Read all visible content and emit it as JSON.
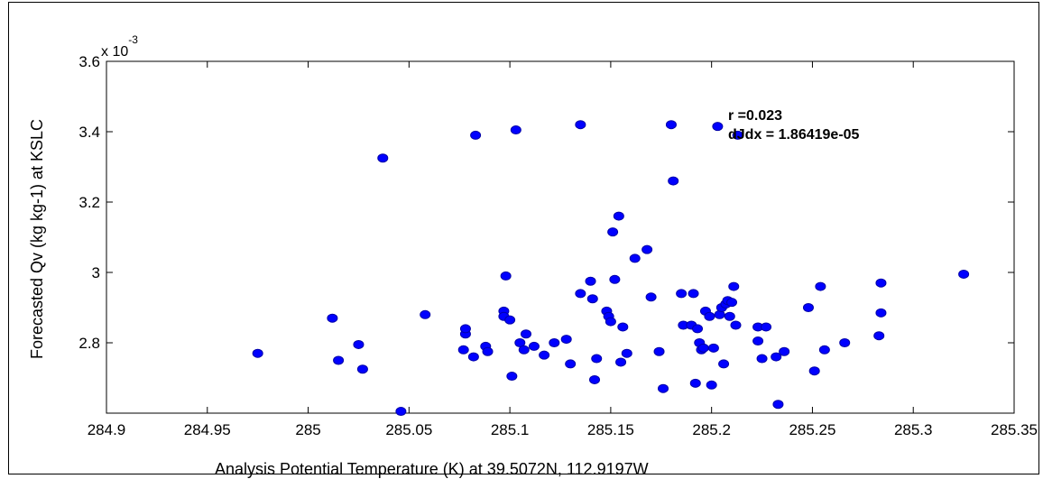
{
  "chart_data": {
    "type": "scatter",
    "xlabel": "Analysis Potential Temperature (K) at 39.5072N, 112.9197W",
    "ylabel": "Forecasted Qv (kg kg-1) at KSLC",
    "y_multiplier": "x 10",
    "y_multiplier_exp": "-3",
    "xlim": [
      284.9,
      285.35
    ],
    "ylim": [
      2.6,
      3.6
    ],
    "x_ticks": [
      "284.9",
      "284.95",
      "285",
      "285.05",
      "285.1",
      "285.15",
      "285.2",
      "285.25",
      "285.3",
      "285.35"
    ],
    "y_ticks": [
      "2.8",
      "3",
      "3.2",
      "3.4",
      "3.6"
    ],
    "annotations": [
      "r =0.023",
      "dJdx = 1.86419e-05"
    ],
    "marker_color": "#0000ff",
    "grid": false,
    "points": [
      [
        284.975,
        2.77
      ],
      [
        285.012,
        2.87
      ],
      [
        285.015,
        2.75
      ],
      [
        285.025,
        2.795
      ],
      [
        285.027,
        2.725
      ],
      [
        285.037,
        3.325
      ],
      [
        285.046,
        2.605
      ],
      [
        285.058,
        2.88
      ],
      [
        285.077,
        2.78
      ],
      [
        285.078,
        2.825
      ],
      [
        285.078,
        2.84
      ],
      [
        285.082,
        2.76
      ],
      [
        285.083,
        3.39
      ],
      [
        285.088,
        2.79
      ],
      [
        285.089,
        2.775
      ],
      [
        285.097,
        2.89
      ],
      [
        285.097,
        2.875
      ],
      [
        285.098,
        2.99
      ],
      [
        285.1,
        2.865
      ],
      [
        285.101,
        2.705
      ],
      [
        285.103,
        3.405
      ],
      [
        285.105,
        2.8
      ],
      [
        285.107,
        2.78
      ],
      [
        285.108,
        2.825
      ],
      [
        285.112,
        2.79
      ],
      [
        285.117,
        2.765
      ],
      [
        285.122,
        2.8
      ],
      [
        285.128,
        2.81
      ],
      [
        285.13,
        2.74
      ],
      [
        285.135,
        3.42
      ],
      [
        285.135,
        2.94
      ],
      [
        285.14,
        2.975
      ],
      [
        285.141,
        2.925
      ],
      [
        285.142,
        2.695
      ],
      [
        285.143,
        2.755
      ],
      [
        285.148,
        2.89
      ],
      [
        285.149,
        2.875
      ],
      [
        285.15,
        2.86
      ],
      [
        285.151,
        3.115
      ],
      [
        285.152,
        2.98
      ],
      [
        285.154,
        3.16
      ],
      [
        285.155,
        2.745
      ],
      [
        285.156,
        2.845
      ],
      [
        285.158,
        2.77
      ],
      [
        285.162,
        3.04
      ],
      [
        285.168,
        3.065
      ],
      [
        285.17,
        2.93
      ],
      [
        285.174,
        2.775
      ],
      [
        285.176,
        2.67
      ],
      [
        285.18,
        3.42
      ],
      [
        285.181,
        3.26
      ],
      [
        285.185,
        2.94
      ],
      [
        285.186,
        2.85
      ],
      [
        285.19,
        2.85
      ],
      [
        285.191,
        2.94
      ],
      [
        285.192,
        2.685
      ],
      [
        285.193,
        2.84
      ],
      [
        285.194,
        2.8
      ],
      [
        285.195,
        2.78
      ],
      [
        285.196,
        2.785
      ],
      [
        285.197,
        2.89
      ],
      [
        285.199,
        2.875
      ],
      [
        285.2,
        2.68
      ],
      [
        285.201,
        2.785
      ],
      [
        285.203,
        3.415
      ],
      [
        285.204,
        2.88
      ],
      [
        285.205,
        2.9
      ],
      [
        285.206,
        2.74
      ],
      [
        285.207,
        2.91
      ],
      [
        285.208,
        2.92
      ],
      [
        285.209,
        2.875
      ],
      [
        285.21,
        2.915
      ],
      [
        285.211,
        2.96
      ],
      [
        285.212,
        2.85
      ],
      [
        285.213,
        3.39
      ],
      [
        285.223,
        2.845
      ],
      [
        285.223,
        2.805
      ],
      [
        285.225,
        2.755
      ],
      [
        285.227,
        2.845
      ],
      [
        285.232,
        2.76
      ],
      [
        285.233,
        2.625
      ],
      [
        285.236,
        2.775
      ],
      [
        285.248,
        2.9
      ],
      [
        285.251,
        2.72
      ],
      [
        285.254,
        2.96
      ],
      [
        285.256,
        2.78
      ],
      [
        285.266,
        2.8
      ],
      [
        285.283,
        2.82
      ],
      [
        285.284,
        2.97
      ],
      [
        285.284,
        2.885
      ],
      [
        285.325,
        2.995
      ]
    ]
  }
}
